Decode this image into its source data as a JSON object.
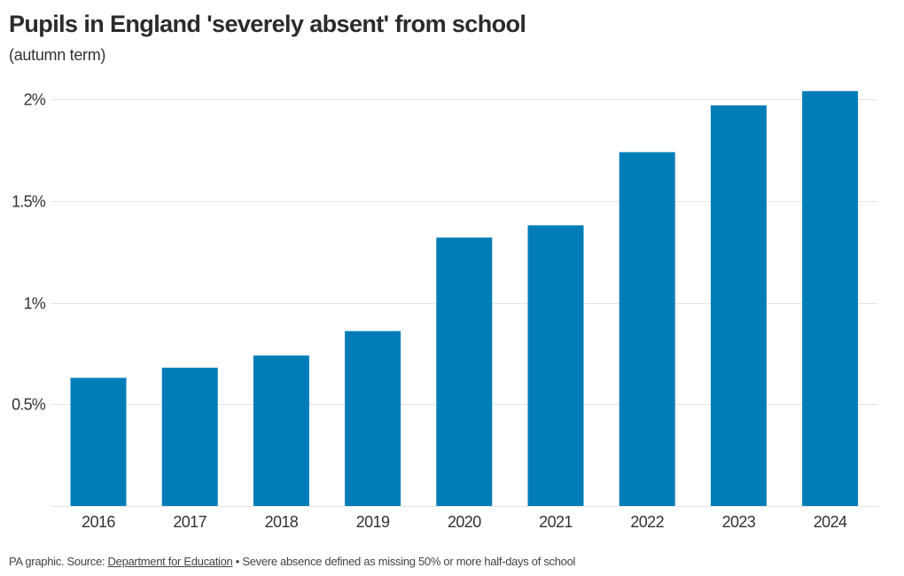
{
  "header": {
    "title": "Pupils in England 'severely absent' from school",
    "subtitle": "(autumn term)"
  },
  "footer": {
    "prefix": "PA graphic. Source: ",
    "source_link": "Department for Education",
    "note": " • Severe absence defined as missing 50% or more half-days of school"
  },
  "colors": {
    "bar": "#007DB7",
    "grid": "#e6e6e6",
    "text": "#333333"
  },
  "chart_data": {
    "type": "bar",
    "title": "Pupils in England 'severely absent' from school",
    "subtitle": "(autumn term)",
    "xlabel": "",
    "ylabel": "",
    "categories": [
      "2016",
      "2017",
      "2018",
      "2019",
      "2020",
      "2021",
      "2022",
      "2023",
      "2024"
    ],
    "values": [
      0.63,
      0.68,
      0.74,
      0.86,
      1.32,
      1.38,
      1.74,
      1.97,
      2.04
    ],
    "unit": "%",
    "ylim": [
      0,
      2
    ],
    "yticks": [
      0.5,
      1,
      1.5,
      2
    ],
    "ytick_labels": [
      "0.5%",
      "1%",
      "1.5%",
      "2%"
    ],
    "grid": true,
    "legend": "none"
  }
}
